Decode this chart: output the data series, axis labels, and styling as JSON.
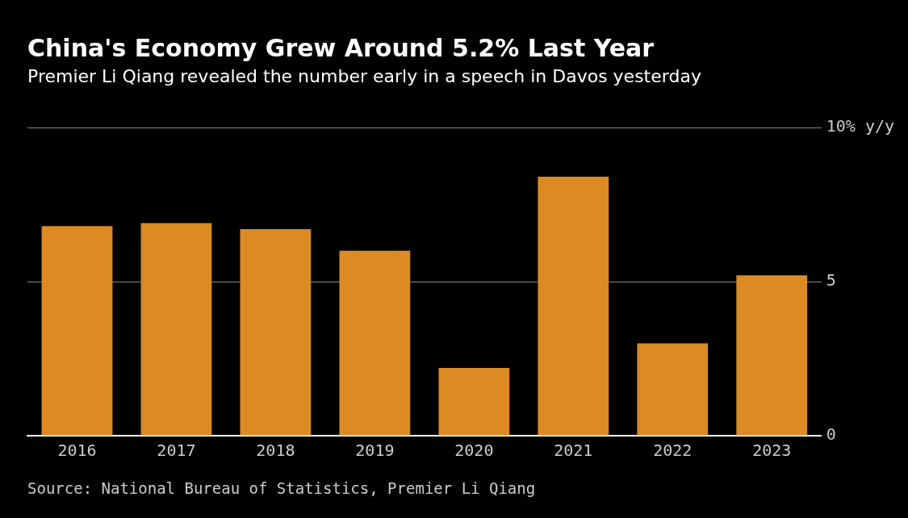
{
  "chart_data": {
    "type": "bar",
    "title": "China's Economy Grew Around 5.2% Last Year",
    "subtitle": "Premier Li Qiang revealed the number early in a speech in Davos yesterday",
    "categories": [
      "2016",
      "2017",
      "2018",
      "2019",
      "2020",
      "2021",
      "2022",
      "2023"
    ],
    "values": [
      6.8,
      6.9,
      6.7,
      6.0,
      2.2,
      8.4,
      3.0,
      5.2
    ],
    "color": "#db8a24",
    "ylim": [
      0,
      10
    ],
    "yticks": [
      0,
      5,
      {
        "value": 10,
        "label": "10% y/y"
      }
    ],
    "grid": "y",
    "legend": false,
    "annotations": [
      "Source: National Bureau of Statistics, Premier Li Qiang"
    ]
  }
}
